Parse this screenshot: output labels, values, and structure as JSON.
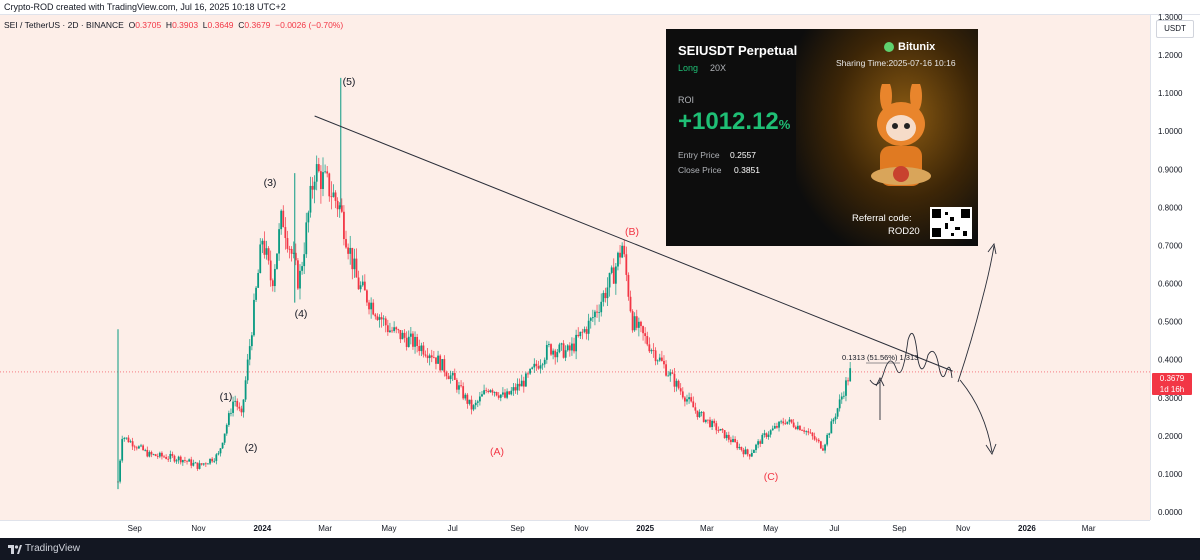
{
  "header": {
    "credit": "Crypto-ROD created with TradingView.com, Jul 16, 2025 10:18 UTC+2"
  },
  "legend": {
    "symbol": "SEI / TetherUS · 2D · BINANCE",
    "o_label": "O",
    "o_value": "0.3705",
    "h_label": "H",
    "h_value": "0.3903",
    "l_label": "L",
    "l_value": "0.3649",
    "c_label": "C",
    "c_value": "0.3679",
    "change": "−0.0026 (−0.70%)"
  },
  "price_axis": {
    "currency": "USDT",
    "ticks": [
      "1.3000",
      "1.2000",
      "1.1000",
      "1.0000",
      "0.9000",
      "0.8000",
      "0.7000",
      "0.6000",
      "0.5000",
      "0.4000",
      "0.3000",
      "0.2000",
      "0.1000",
      "0.0000"
    ],
    "current_price": "0.3679",
    "countdown": "1d 16h"
  },
  "time_axis": {
    "ticks": [
      "Sep",
      "Nov",
      "2024",
      "Mar",
      "May",
      "Jul",
      "Sep",
      "Nov",
      "2025",
      "Mar",
      "May",
      "Jul",
      "Sep",
      "Nov",
      "2026",
      "Mar"
    ]
  },
  "annotations": {
    "wave_1": "(1)",
    "wave_2": "(2)",
    "wave_3": "(3)",
    "wave_4": "(4)",
    "wave_5": "(5)",
    "wave_a": "(A)",
    "wave_b": "(B)",
    "wave_c": "(C)",
    "measure": "0.1313 (51.56%) 1,313"
  },
  "share_card": {
    "title": "SEIUSDT Perpetual",
    "side": "Long",
    "leverage": "20X",
    "brand": "Bitunix",
    "sharing_time": "Sharing Time:2025-07-16 10:16",
    "roi_label": "ROI",
    "roi_value": "+1012.12",
    "roi_unit": "%",
    "entry_label": "Entry Price",
    "entry_value": "0.2557",
    "close_label": "Close Price",
    "close_value": "0.3851",
    "referral_label": "Referral code:",
    "referral_code": "ROD20"
  },
  "footer": {
    "brand": "TradingView"
  },
  "colors": {
    "plot_bg": "#fdeee8",
    "up": "#089981",
    "down": "#f23645",
    "wave_red": "#f23645",
    "roi_green": "#1fbf75"
  },
  "chart_data": {
    "type": "candlestick",
    "ylim": [
      0,
      1.3
    ],
    "x_start": "2023-08-16",
    "x_end": "2026-03-31",
    "close_path": [
      [
        "2023-08-16",
        0.08
      ],
      [
        "2023-08-20",
        0.2
      ],
      [
        "2023-09-15",
        0.15
      ],
      [
        "2023-10-15",
        0.14
      ],
      [
        "2023-11-01",
        0.12
      ],
      [
        "2023-11-20",
        0.15
      ],
      [
        "2023-12-05",
        0.3
      ],
      [
        "2023-12-12",
        0.25
      ],
      [
        "2024-01-01",
        0.72
      ],
      [
        "2024-01-10",
        0.6
      ],
      [
        "2024-01-20",
        0.78
      ],
      [
        "2024-02-05",
        0.6
      ],
      [
        "2024-02-20",
        0.9
      ],
      [
        "2024-03-05",
        0.85
      ],
      [
        "2024-03-15",
        0.8
      ],
      [
        "2024-04-01",
        0.6
      ],
      [
        "2024-05-01",
        0.48
      ],
      [
        "2024-06-10",
        0.42
      ],
      [
        "2024-07-01",
        0.35
      ],
      [
        "2024-07-20",
        0.27
      ],
      [
        "2024-08-05",
        0.33
      ],
      [
        "2024-08-20",
        0.3
      ],
      [
        "2024-09-10",
        0.35
      ],
      [
        "2024-10-01",
        0.43
      ],
      [
        "2024-10-20",
        0.42
      ],
      [
        "2024-11-10",
        0.5
      ],
      [
        "2024-12-01",
        0.62
      ],
      [
        "2024-12-10",
        0.7
      ],
      [
        "2024-12-20",
        0.5
      ],
      [
        "2025-01-10",
        0.42
      ],
      [
        "2025-02-01",
        0.33
      ],
      [
        "2025-02-20",
        0.26
      ],
      [
        "2025-03-10",
        0.22
      ],
      [
        "2025-04-01",
        0.17
      ],
      [
        "2025-04-10",
        0.15
      ],
      [
        "2025-04-25",
        0.2
      ],
      [
        "2025-05-15",
        0.24
      ],
      [
        "2025-06-01",
        0.22
      ],
      [
        "2025-06-20",
        0.17
      ],
      [
        "2025-07-05",
        0.28
      ],
      [
        "2025-07-16",
        0.3679
      ]
    ],
    "trendline": [
      [
        "2024-02-20",
        1.04
      ],
      [
        "2025-10-22",
        0.37
      ]
    ],
    "wicks": [
      {
        "x": "2023-08-16",
        "low": 0.06,
        "high": 0.48
      },
      {
        "x": "2024-03-16",
        "low": 0.8,
        "high": 1.14
      },
      {
        "x": "2024-02-01",
        "low": 0.55,
        "high": 0.89
      }
    ]
  }
}
